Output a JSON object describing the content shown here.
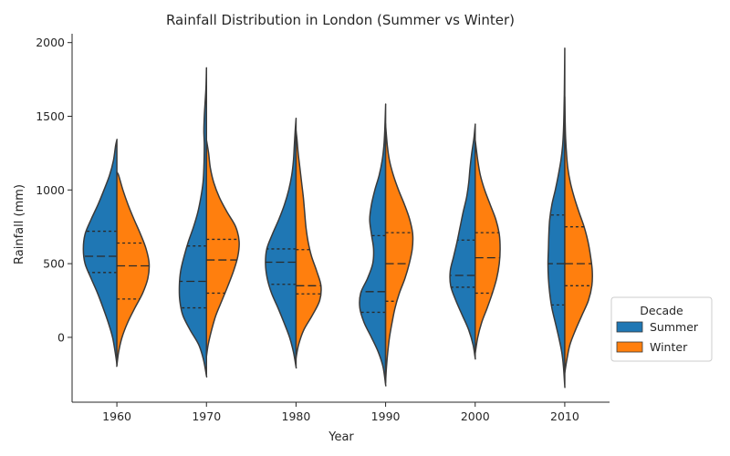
{
  "chart_data": {
    "type": "violin",
    "title": "Rainfall Distribution in London (Summer vs Winter)",
    "xlabel": "Year",
    "ylabel": "Rainfall (mm)",
    "categories": [
      "1960",
      "1970",
      "1980",
      "1990",
      "2000",
      "2010"
    ],
    "yticks": [
      0,
      500,
      1000,
      1500,
      2000
    ],
    "ylim": [
      -440,
      2060
    ],
    "legend": {
      "title": "Decade",
      "placement": "right"
    },
    "series": [
      {
        "name": "Summer",
        "color": "#1f77b4",
        "violins": [
          {
            "ymin": -180,
            "ymax": 1340,
            "quartiles": [
              440,
              550,
              720
            ],
            "profile": [
              [
                -180,
                0.0
              ],
              [
                -100,
                0.04
              ],
              [
                0,
                0.1
              ],
              [
                100,
                0.2
              ],
              [
                200,
                0.32
              ],
              [
                300,
                0.45
              ],
              [
                400,
                0.6
              ],
              [
                500,
                0.74
              ],
              [
                600,
                0.78
              ],
              [
                700,
                0.74
              ],
              [
                800,
                0.6
              ],
              [
                900,
                0.44
              ],
              [
                1000,
                0.3
              ],
              [
                1100,
                0.17
              ],
              [
                1200,
                0.08
              ],
              [
                1300,
                0.03
              ],
              [
                1340,
                0.0
              ]
            ]
          },
          {
            "ymin": -260,
            "ymax": 1820,
            "quartiles": [
              200,
              380,
              620
            ],
            "profile": [
              [
                -260,
                0.0
              ],
              [
                -150,
                0.07
              ],
              [
                -50,
                0.18
              ],
              [
                50,
                0.38
              ],
              [
                150,
                0.55
              ],
              [
                250,
                0.62
              ],
              [
                350,
                0.63
              ],
              [
                450,
                0.6
              ],
              [
                550,
                0.52
              ],
              [
                650,
                0.42
              ],
              [
                750,
                0.3
              ],
              [
                850,
                0.2
              ],
              [
                950,
                0.13
              ],
              [
                1050,
                0.08
              ],
              [
                1150,
                0.06
              ],
              [
                1300,
                0.05
              ],
              [
                1400,
                0.06
              ],
              [
                1500,
                0.05
              ],
              [
                1600,
                0.03
              ],
              [
                1700,
                0.01
              ],
              [
                1820,
                0.0
              ]
            ]
          },
          {
            "ymin": -200,
            "ymax": 1480,
            "quartiles": [
              360,
              510,
              600
            ],
            "profile": [
              [
                -200,
                0.0
              ],
              [
                -100,
                0.06
              ],
              [
                0,
                0.15
              ],
              [
                100,
                0.28
              ],
              [
                200,
                0.42
              ],
              [
                300,
                0.57
              ],
              [
                400,
                0.67
              ],
              [
                500,
                0.71
              ],
              [
                600,
                0.68
              ],
              [
                700,
                0.55
              ],
              [
                800,
                0.4
              ],
              [
                900,
                0.27
              ],
              [
                1000,
                0.17
              ],
              [
                1100,
                0.1
              ],
              [
                1200,
                0.06
              ],
              [
                1300,
                0.04
              ],
              [
                1400,
                0.02
              ],
              [
                1480,
                0.0
              ]
            ]
          },
          {
            "ymin": -320,
            "ymax": 1570,
            "quartiles": [
              170,
              310,
              690
            ],
            "profile": [
              [
                -320,
                0.0
              ],
              [
                -200,
                0.06
              ],
              [
                -100,
                0.17
              ],
              [
                0,
                0.33
              ],
              [
                100,
                0.5
              ],
              [
                200,
                0.6
              ],
              [
                300,
                0.58
              ],
              [
                400,
                0.42
              ],
              [
                500,
                0.3
              ],
              [
                600,
                0.28
              ],
              [
                700,
                0.33
              ],
              [
                800,
                0.37
              ],
              [
                900,
                0.33
              ],
              [
                1000,
                0.25
              ],
              [
                1100,
                0.15
              ],
              [
                1200,
                0.08
              ],
              [
                1300,
                0.04
              ],
              [
                1400,
                0.02
              ],
              [
                1570,
                0.0
              ]
            ]
          },
          {
            "ymin": -140,
            "ymax": 1440,
            "quartiles": [
              340,
              420,
              660
            ],
            "profile": [
              [
                -140,
                0.0
              ],
              [
                -50,
                0.05
              ],
              [
                50,
                0.15
              ],
              [
                150,
                0.3
              ],
              [
                250,
                0.45
              ],
              [
                350,
                0.57
              ],
              [
                450,
                0.58
              ],
              [
                550,
                0.5
              ],
              [
                650,
                0.42
              ],
              [
                750,
                0.35
              ],
              [
                850,
                0.28
              ],
              [
                950,
                0.2
              ],
              [
                1050,
                0.15
              ],
              [
                1150,
                0.12
              ],
              [
                1250,
                0.08
              ],
              [
                1350,
                0.03
              ],
              [
                1440,
                0.0
              ]
            ]
          },
          {
            "ymin": -330,
            "ymax": 1940,
            "quartiles": [
              220,
              500,
              830
            ],
            "profile": [
              [
                -330,
                0.0
              ],
              [
                -200,
                0.03
              ],
              [
                -100,
                0.07
              ],
              [
                0,
                0.14
              ],
              [
                100,
                0.22
              ],
              [
                200,
                0.3
              ],
              [
                300,
                0.35
              ],
              [
                400,
                0.38
              ],
              [
                500,
                0.39
              ],
              [
                600,
                0.38
              ],
              [
                700,
                0.37
              ],
              [
                800,
                0.35
              ],
              [
                900,
                0.3
              ],
              [
                1000,
                0.22
              ],
              [
                1100,
                0.15
              ],
              [
                1200,
                0.09
              ],
              [
                1300,
                0.05
              ],
              [
                1400,
                0.03
              ],
              [
                1500,
                0.02
              ],
              [
                1650,
                0.01
              ],
              [
                1940,
                0.0
              ]
            ]
          }
        ]
      },
      {
        "name": "Winter",
        "color": "#ff7f0e",
        "violins": [
          {
            "ymin": -190,
            "ymax": 1120,
            "quartiles": [
              260,
              485,
              640
            ],
            "profile": [
              [
                -190,
                0.0
              ],
              [
                -100,
                0.04
              ],
              [
                0,
                0.12
              ],
              [
                100,
                0.25
              ],
              [
                200,
                0.42
              ],
              [
                300,
                0.6
              ],
              [
                400,
                0.72
              ],
              [
                500,
                0.75
              ],
              [
                600,
                0.68
              ],
              [
                700,
                0.55
              ],
              [
                800,
                0.4
              ],
              [
                900,
                0.26
              ],
              [
                1000,
                0.14
              ],
              [
                1100,
                0.04
              ],
              [
                1120,
                0.0
              ]
            ]
          },
          {
            "ymin": -130,
            "ymax": 1340,
            "quartiles": [
              300,
              525,
              665
            ],
            "profile": [
              [
                -130,
                0.0
              ],
              [
                -50,
                0.04
              ],
              [
                50,
                0.12
              ],
              [
                150,
                0.22
              ],
              [
                250,
                0.36
              ],
              [
                350,
                0.5
              ],
              [
                450,
                0.63
              ],
              [
                550,
                0.73
              ],
              [
                650,
                0.76
              ],
              [
                750,
                0.68
              ],
              [
                850,
                0.48
              ],
              [
                950,
                0.3
              ],
              [
                1050,
                0.17
              ],
              [
                1150,
                0.09
              ],
              [
                1250,
                0.05
              ],
              [
                1340,
                0.0
              ]
            ]
          },
          {
            "ymin": -140,
            "ymax": 1400,
            "quartiles": [
              295,
              350,
              595
            ],
            "profile": [
              [
                -140,
                0.0
              ],
              [
                -50,
                0.06
              ],
              [
                50,
                0.18
              ],
              [
                150,
                0.38
              ],
              [
                250,
                0.55
              ],
              [
                350,
                0.58
              ],
              [
                450,
                0.48
              ],
              [
                550,
                0.36
              ],
              [
                650,
                0.28
              ],
              [
                750,
                0.23
              ],
              [
                850,
                0.2
              ],
              [
                950,
                0.17
              ],
              [
                1050,
                0.13
              ],
              [
                1150,
                0.09
              ],
              [
                1250,
                0.05
              ],
              [
                1350,
                0.02
              ],
              [
                1400,
                0.0
              ]
            ]
          },
          {
            "ymin": -300,
            "ymax": 1440,
            "quartiles": [
              245,
              500,
              710
            ],
            "profile": [
              [
                -300,
                0.0
              ],
              [
                -200,
                0.02
              ],
              [
                -100,
                0.05
              ],
              [
                0,
                0.09
              ],
              [
                100,
                0.15
              ],
              [
                200,
                0.22
              ],
              [
                300,
                0.32
              ],
              [
                400,
                0.45
              ],
              [
                500,
                0.55
              ],
              [
                600,
                0.62
              ],
              [
                700,
                0.63
              ],
              [
                800,
                0.56
              ],
              [
                900,
                0.44
              ],
              [
                1000,
                0.3
              ],
              [
                1100,
                0.18
              ],
              [
                1200,
                0.09
              ],
              [
                1300,
                0.04
              ],
              [
                1440,
                0.0
              ]
            ]
          },
          {
            "ymin": -110,
            "ymax": 1340,
            "quartiles": [
              300,
              540,
              710
            ],
            "profile": [
              [
                -110,
                0.0
              ],
              [
                0,
                0.06
              ],
              [
                100,
                0.15
              ],
              [
                200,
                0.28
              ],
              [
                300,
                0.4
              ],
              [
                400,
                0.5
              ],
              [
                500,
                0.56
              ],
              [
                600,
                0.58
              ],
              [
                700,
                0.56
              ],
              [
                800,
                0.48
              ],
              [
                900,
                0.35
              ],
              [
                1000,
                0.22
              ],
              [
                1100,
                0.12
              ],
              [
                1200,
                0.06
              ],
              [
                1340,
                0.0
              ]
            ]
          },
          {
            "ymin": -240,
            "ymax": 1620,
            "quartiles": [
              350,
              500,
              750
            ],
            "profile": [
              [
                -240,
                0.0
              ],
              [
                -150,
                0.05
              ],
              [
                -50,
                0.12
              ],
              [
                50,
                0.25
              ],
              [
                150,
                0.4
              ],
              [
                250,
                0.55
              ],
              [
                350,
                0.63
              ],
              [
                450,
                0.64
              ],
              [
                550,
                0.6
              ],
              [
                650,
                0.54
              ],
              [
                750,
                0.45
              ],
              [
                850,
                0.33
              ],
              [
                950,
                0.22
              ],
              [
                1050,
                0.13
              ],
              [
                1150,
                0.07
              ],
              [
                1250,
                0.04
              ],
              [
                1350,
                0.02
              ],
              [
                1450,
                0.01
              ],
              [
                1620,
                0.0
              ]
            ]
          }
        ]
      }
    ]
  }
}
